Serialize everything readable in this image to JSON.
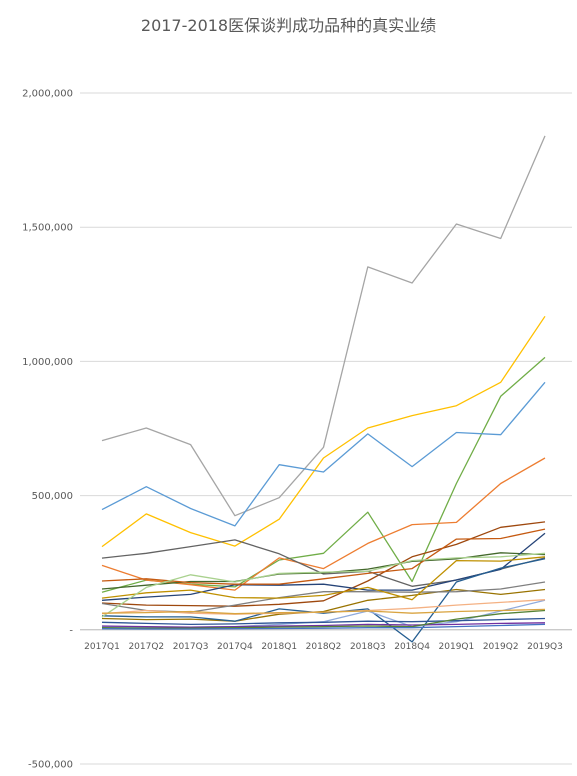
{
  "chart_data": {
    "type": "line",
    "title": "2017-2018医保谈判成功品种的真实业绩",
    "xlabel": "",
    "ylabel": "",
    "categories": [
      "2017Q1",
      "2017Q2",
      "2017Q3",
      "2017Q4",
      "2018Q1",
      "2018Q2",
      "2018Q3",
      "2018Q4",
      "2019Q1",
      "2019Q2",
      "2019Q3"
    ],
    "yticks": [
      "2,000,000",
      "1,500,000",
      "1,000,000",
      "500,000",
      "-",
      "-500,000"
    ],
    "ylim": [
      -500000,
      2000000
    ],
    "grid": true,
    "legend": "none",
    "series": [
      {
        "color": "#a5a5a5",
        "values": [
          705000,
          752000,
          690000,
          425000,
          492000,
          680000,
          1352000,
          1292000,
          1512000,
          1458000,
          1840000
        ]
      },
      {
        "color": "#ffc000",
        "values": [
          310000,
          432000,
          362000,
          312000,
          412000,
          640000,
          752000,
          798000,
          835000,
          922000,
          1168000
        ]
      },
      {
        "color": "#70ad47",
        "values": [
          140000,
          185000,
          170000,
          160000,
          260000,
          285000,
          438000,
          180000,
          545000,
          870000,
          1015000
        ]
      },
      {
        "color": "#5b9bd5",
        "values": [
          448000,
          533000,
          452000,
          387000,
          615000,
          588000,
          730000,
          608000,
          735000,
          727000,
          922000
        ]
      },
      {
        "color": "#ed7d31",
        "values": [
          240000,
          185000,
          168000,
          148000,
          268000,
          228000,
          322000,
          392000,
          400000,
          545000,
          640000
        ]
      },
      {
        "color": "#9e480e",
        "values": [
          100000,
          92000,
          90000,
          88000,
          95000,
          108000,
          182000,
          272000,
          318000,
          382000,
          402000
        ]
      },
      {
        "color": "#636363",
        "values": [
          267000,
          285000,
          310000,
          335000,
          283000,
          208000,
          218000,
          162000,
          185000,
          226000,
          268000
        ]
      },
      {
        "color": "#43682b",
        "values": [
          152000,
          166000,
          180000,
          180000,
          208000,
          212000,
          226000,
          255000,
          264000,
          287000,
          280000
        ]
      },
      {
        "color": "#264478",
        "values": [
          110000,
          122000,
          132000,
          168000,
          166000,
          170000,
          148000,
          148000,
          186000,
          225000,
          360000
        ]
      },
      {
        "color": "#997300",
        "values": [
          42000,
          38000,
          40000,
          32000,
          58000,
          68000,
          110000,
          128000,
          150000,
          132000,
          150000
        ]
      },
      {
        "color": "#255e91",
        "values": [
          52000,
          48000,
          48000,
          32000,
          78000,
          62000,
          78000,
          -45000,
          178000,
          230000,
          265000
        ]
      },
      {
        "color": "#c55a11",
        "values": [
          182000,
          190000,
          176000,
          170000,
          170000,
          190000,
          210000,
          228000,
          338000,
          340000,
          375000
        ]
      },
      {
        "color": "#7f7f7f",
        "values": [
          98000,
          72000,
          66000,
          92000,
          120000,
          142000,
          142000,
          140000,
          142000,
          152000,
          178000
        ]
      },
      {
        "color": "#bf9000",
        "values": [
          118000,
          138000,
          148000,
          120000,
          118000,
          128000,
          158000,
          112000,
          258000,
          256000,
          272000
        ]
      },
      {
        "color": "#8faadc",
        "values": [
          12000,
          8000,
          10000,
          12000,
          20000,
          30000,
          70000,
          12000,
          30000,
          70000,
          110000
        ]
      },
      {
        "color": "#a9d18e",
        "values": [
          48000,
          158000,
          205000,
          178000,
          210000,
          215000,
          218000,
          258000,
          268000,
          272000,
          285000
        ]
      },
      {
        "color": "#f4b183",
        "values": [
          60000,
          72000,
          62000,
          58000,
          62000,
          66000,
          72000,
          80000,
          92000,
          102000,
          112000
        ]
      },
      {
        "color": "#2f5597",
        "values": [
          28000,
          24000,
          20000,
          22000,
          26000,
          28000,
          32000,
          30000,
          34000,
          38000,
          42000
        ]
      },
      {
        "color": "#7030a0",
        "values": [
          14000,
          12000,
          10000,
          12000,
          14000,
          16000,
          20000,
          18000,
          20000,
          24000,
          26000
        ]
      },
      {
        "color": "#548235",
        "values": [
          8000,
          6000,
          6000,
          8000,
          10000,
          12000,
          14000,
          12000,
          40000,
          60000,
          72000
        ]
      },
      {
        "color": "#d9a441",
        "values": [
          62000,
          64000,
          68000,
          60000,
          64000,
          66000,
          70000,
          62000,
          68000,
          72000,
          76000
        ]
      },
      {
        "color": "#4472c4",
        "values": [
          4000,
          3000,
          3000,
          4000,
          5000,
          6000,
          8000,
          8000,
          12000,
          16000,
          20000
        ]
      }
    ]
  }
}
